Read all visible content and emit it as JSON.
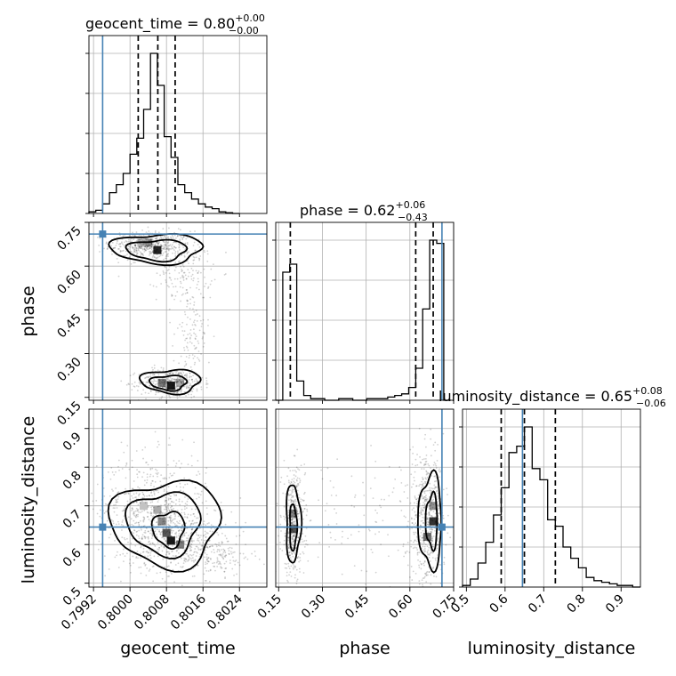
{
  "chart_data": {
    "type": "corner",
    "parameters": [
      "geocent_time",
      "phase",
      "luminosity_distance"
    ],
    "injection": {
      "geocent_time": 0.7994,
      "phase": 0.71,
      "luminosity_distance": 0.645,
      "color": "#4682b4"
    },
    "titles": [
      {
        "parameter": "geocent_time",
        "median": "0.80",
        "plus": "+0.00",
        "minus": "−0.00",
        "label": "geocent_time = 0.80"
      },
      {
        "parameter": "phase",
        "median": "0.62",
        "plus": "+0.06",
        "minus": "−0.43",
        "label": "phase = 0.62"
      },
      {
        "parameter": "luminosity_distance",
        "median": "0.65",
        "plus": "+0.08",
        "minus": "−0.06",
        "label": "luminosity_distance = 0.65"
      }
    ],
    "axes": {
      "geocent_time": {
        "range": [
          0.7991,
          0.803
        ],
        "ticks": [
          0.7992,
          0.8,
          0.8008,
          0.8016,
          0.8024
        ],
        "tick_labels": [
          "0.7992",
          "0.8000",
          "0.8008",
          "0.8016",
          "0.8024"
        ]
      },
      "phase": {
        "range": [
          0.14,
          0.75
        ],
        "ticks": [
          0.15,
          0.3,
          0.45,
          0.6,
          0.75
        ],
        "tick_labels": [
          "0.15",
          "0.30",
          "0.45",
          "0.60",
          "0.75"
        ]
      },
      "luminosity_distance": {
        "range": [
          0.49,
          0.95
        ],
        "ticks": [
          0.5,
          0.6,
          0.7,
          0.8,
          0.9
        ],
        "tick_labels": [
          "0.5",
          "0.6",
          "0.7",
          "0.8",
          "0.9"
        ]
      }
    },
    "histograms": {
      "geocent_time": {
        "edges": [
          0.7991,
          0.79925,
          0.7994,
          0.79955,
          0.7997,
          0.79985,
          0.8,
          0.80015,
          0.8003,
          0.80045,
          0.8006,
          0.80075,
          0.8009,
          0.80105,
          0.8012,
          0.80135,
          0.8015,
          0.80165,
          0.8018,
          0.80195,
          0.8021,
          0.80225,
          0.8024
        ],
        "counts": [
          0.01,
          0.02,
          0.06,
          0.13,
          0.18,
          0.25,
          0.37,
          0.47,
          0.65,
          1.0,
          0.8,
          0.48,
          0.35,
          0.18,
          0.13,
          0.09,
          0.06,
          0.04,
          0.03,
          0.01,
          0.005,
          0.0
        ],
        "quantiles": [
          0.80018,
          0.80061,
          0.80099
        ]
      },
      "phase": {
        "edges": [
          0.14,
          0.164,
          0.188,
          0.212,
          0.236,
          0.26,
          0.284,
          0.308,
          0.332,
          0.356,
          0.38,
          0.404,
          0.428,
          0.452,
          0.476,
          0.5,
          0.524,
          0.548,
          0.572,
          0.596,
          0.62,
          0.644,
          0.668,
          0.692,
          0.716,
          0.74
        ],
        "counts": [
          0.0,
          0.8,
          0.85,
          0.12,
          0.03,
          0.01,
          0.01,
          0.0,
          0.0,
          0.01,
          0.01,
          0.0,
          0.0,
          0.01,
          0.01,
          0.01,
          0.02,
          0.03,
          0.04,
          0.08,
          0.2,
          0.57,
          1.0,
          0.98,
          0.0
        ],
        "quantiles": [
          0.19,
          0.62,
          0.68
        ]
      },
      "luminosity_distance": {
        "edges": [
          0.49,
          0.51,
          0.53,
          0.55,
          0.57,
          0.59,
          0.61,
          0.63,
          0.65,
          0.67,
          0.69,
          0.71,
          0.73,
          0.75,
          0.77,
          0.79,
          0.81,
          0.83,
          0.85,
          0.87,
          0.89,
          0.91,
          0.93,
          0.95
        ],
        "counts": [
          0.01,
          0.05,
          0.15,
          0.28,
          0.45,
          0.62,
          0.84,
          0.88,
          1.0,
          0.74,
          0.67,
          0.42,
          0.38,
          0.25,
          0.18,
          0.12,
          0.06,
          0.04,
          0.03,
          0.02,
          0.01,
          0.01,
          0.0
        ],
        "quantiles": [
          0.59,
          0.65,
          0.73
        ]
      }
    },
    "scatter_clusters": {
      "geocent_time_vs_phase": [
        {
          "x": 0.80045,
          "y": 0.67,
          "sx": 0.00045,
          "sy": 0.025,
          "n": 500
        },
        {
          "x": 0.8012,
          "y": 0.58,
          "sx": 0.0003,
          "sy": 0.05,
          "n": 140
        },
        {
          "x": 0.80135,
          "y": 0.35,
          "sx": 0.0002,
          "sy": 0.09,
          "n": 120
        },
        {
          "x": 0.8009,
          "y": 0.2,
          "sx": 0.00035,
          "sy": 0.025,
          "n": 420
        }
      ],
      "geocent_time_vs_luminosity_distance": [
        {
          "x": 0.8005,
          "y": 0.69,
          "sx": 0.0006,
          "sy": 0.07,
          "n": 650
        },
        {
          "x": 0.8011,
          "y": 0.61,
          "sx": 0.0005,
          "sy": 0.04,
          "n": 350
        },
        {
          "x": 0.8019,
          "y": 0.57,
          "sx": 0.0004,
          "sy": 0.025,
          "n": 150
        }
      ],
      "phase_vs_luminosity_distance": [
        {
          "x": 0.2,
          "y": 0.65,
          "sx": 0.02,
          "sy": 0.07,
          "n": 450
        },
        {
          "x": 0.66,
          "y": 0.66,
          "sx": 0.03,
          "sy": 0.08,
          "n": 550
        },
        {
          "x": 0.45,
          "y": 0.66,
          "sx": 0.15,
          "sy": 0.1,
          "n": 120
        }
      ]
    },
    "density_cells": {
      "geocent_time_vs_phase": [
        {
          "x": 0.8006,
          "y": 0.655,
          "v": 0.9
        },
        {
          "x": 0.8004,
          "y": 0.68,
          "v": 0.45
        },
        {
          "x": 0.80025,
          "y": 0.68,
          "v": 0.3
        },
        {
          "x": 0.8009,
          "y": 0.19,
          "v": 0.95
        },
        {
          "x": 0.8007,
          "y": 0.2,
          "v": 0.55
        },
        {
          "x": 0.8011,
          "y": 0.2,
          "v": 0.35
        }
      ],
      "geocent_time_vs_luminosity_distance": [
        {
          "x": 0.8009,
          "y": 0.61,
          "v": 0.95
        },
        {
          "x": 0.8008,
          "y": 0.63,
          "v": 0.7
        },
        {
          "x": 0.8007,
          "y": 0.66,
          "v": 0.5
        },
        {
          "x": 0.8006,
          "y": 0.69,
          "v": 0.35
        },
        {
          "x": 0.8011,
          "y": 0.6,
          "v": 0.55
        },
        {
          "x": 0.8003,
          "y": 0.7,
          "v": 0.25
        }
      ],
      "phase_vs_luminosity_distance": [
        {
          "x": 0.2,
          "y": 0.64,
          "v": 0.7
        },
        {
          "x": 0.2,
          "y": 0.68,
          "v": 0.5
        },
        {
          "x": 0.68,
          "y": 0.66,
          "v": 0.85
        },
        {
          "x": 0.66,
          "y": 0.62,
          "v": 0.6
        },
        {
          "x": 0.68,
          "y": 0.7,
          "v": 0.45
        }
      ]
    },
    "contours": {
      "geocent_time_vs_phase": [
        {
          "cx": 0.8006,
          "cy": 0.655,
          "rx": 0.00065,
          "ry": 0.035
        },
        {
          "cx": 0.8006,
          "cy": 0.66,
          "rx": 0.001,
          "ry": 0.05
        },
        {
          "cx": 0.80085,
          "cy": 0.2,
          "rx": 0.0004,
          "ry": 0.025
        },
        {
          "cx": 0.8009,
          "cy": 0.205,
          "rx": 0.00065,
          "ry": 0.04
        }
      ],
      "geocent_time_vs_luminosity_distance": [
        {
          "cx": 0.80085,
          "cy": 0.64,
          "rx": 0.00035,
          "ry": 0.045
        },
        {
          "cx": 0.80075,
          "cy": 0.655,
          "rx": 0.0008,
          "ry": 0.08
        },
        {
          "cx": 0.8008,
          "cy": 0.655,
          "rx": 0.0012,
          "ry": 0.11
        }
      ],
      "phase_vs_luminosity_distance": [
        {
          "cx": 0.2,
          "cy": 0.645,
          "rx": 0.012,
          "ry": 0.06
        },
        {
          "cx": 0.2,
          "cy": 0.655,
          "rx": 0.025,
          "ry": 0.1
        },
        {
          "cx": 0.675,
          "cy": 0.66,
          "rx": 0.02,
          "ry": 0.07
        },
        {
          "cx": 0.67,
          "cy": 0.66,
          "rx": 0.04,
          "ry": 0.12
        }
      ]
    },
    "grid": true
  }
}
